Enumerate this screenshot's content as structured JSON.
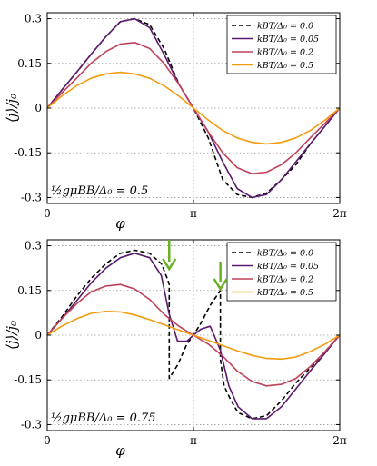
{
  "chart_data": [
    {
      "type": "line",
      "xlabel": "φ",
      "ylabel": "⟨j⟩/j₀",
      "annotation": "½gμBB/Δ₀ = 0.5",
      "xlim": [
        0,
        6.2832
      ],
      "ylim": [
        -0.32,
        0.32
      ],
      "xticks": [
        {
          "v": 0,
          "label": "0"
        },
        {
          "v": 3.1416,
          "label": "π"
        },
        {
          "v": 6.2832,
          "label": "2π"
        }
      ],
      "yticks": [
        {
          "v": 0.3,
          "label": "0.3"
        },
        {
          "v": 0.15,
          "label": "0.15"
        },
        {
          "v": 0,
          "label": "0"
        },
        {
          "v": -0.15,
          "label": "-0.15"
        },
        {
          "v": -0.3,
          "label": "-0.3"
        }
      ],
      "grid": true,
      "legend_position": "top-right",
      "series": [
        {
          "name": "kBT/Δ₀ = 0.0",
          "color": "#000000",
          "dash": "5,3",
          "x": [
            0,
            0.31,
            0.63,
            0.94,
            1.26,
            1.57,
            1.88,
            2.2,
            2.51,
            2.83,
            3.14,
            3.46,
            3.77,
            4.08,
            4.4,
            4.71,
            5.03,
            5.34,
            5.65,
            5.97,
            6.28
          ],
          "y": [
            0,
            0.06,
            0.12,
            0.18,
            0.24,
            0.29,
            0.3,
            0.28,
            0.2,
            0.08,
            0,
            -0.1,
            -0.24,
            -0.29,
            -0.3,
            -0.285,
            -0.24,
            -0.19,
            -0.12,
            -0.06,
            0
          ]
        },
        {
          "name": "kBT/Δ₀ = 0.05",
          "color": "#5b1a6e",
          "dash": "",
          "x": [
            0,
            0.31,
            0.63,
            0.94,
            1.26,
            1.57,
            1.88,
            2.2,
            2.51,
            2.83,
            3.14,
            3.46,
            3.77,
            4.08,
            4.4,
            4.71,
            5.03,
            5.34,
            5.65,
            5.97,
            6.28
          ],
          "y": [
            0,
            0.06,
            0.12,
            0.18,
            0.24,
            0.29,
            0.3,
            0.27,
            0.18,
            0.08,
            0,
            -0.08,
            -0.18,
            -0.27,
            -0.3,
            -0.29,
            -0.24,
            -0.18,
            -0.12,
            -0.06,
            0
          ]
        },
        {
          "name": "kBT/Δ₀ = 0.2",
          "color": "#c0405a",
          "dash": "",
          "x": [
            0,
            0.31,
            0.63,
            0.94,
            1.26,
            1.57,
            1.88,
            2.2,
            2.51,
            2.83,
            3.14,
            3.46,
            3.77,
            4.08,
            4.4,
            4.71,
            5.03,
            5.34,
            5.65,
            5.97,
            6.28
          ],
          "y": [
            0,
            0.05,
            0.1,
            0.15,
            0.19,
            0.215,
            0.22,
            0.2,
            0.15,
            0.08,
            0,
            -0.08,
            -0.15,
            -0.2,
            -0.22,
            -0.215,
            -0.19,
            -0.15,
            -0.1,
            -0.05,
            0
          ]
        },
        {
          "name": "kBT/Δ₀ = 0.5",
          "color": "#f39c12",
          "dash": "",
          "x": [
            0,
            0.31,
            0.63,
            0.94,
            1.26,
            1.57,
            1.88,
            2.2,
            2.51,
            2.83,
            3.14,
            3.46,
            3.77,
            4.08,
            4.4,
            4.71,
            5.03,
            5.34,
            5.65,
            5.97,
            6.28
          ],
          "y": [
            0,
            0.04,
            0.075,
            0.1,
            0.115,
            0.12,
            0.115,
            0.1,
            0.075,
            0.04,
            0,
            -0.04,
            -0.075,
            -0.1,
            -0.115,
            -0.12,
            -0.115,
            -0.1,
            -0.075,
            -0.04,
            0
          ]
        }
      ]
    },
    {
      "type": "line",
      "xlabel": "φ",
      "ylabel": "⟨j⟩/j₀",
      "annotation": "½gμBB/Δ₀ = 0.75",
      "xlim": [
        0,
        6.2832
      ],
      "ylim": [
        -0.32,
        0.32
      ],
      "xticks": [
        {
          "v": 0,
          "label": "0"
        },
        {
          "v": 3.1416,
          "label": "π"
        },
        {
          "v": 6.2832,
          "label": "2π"
        }
      ],
      "yticks": [
        {
          "v": 0.3,
          "label": "0.3"
        },
        {
          "v": 0.15,
          "label": "0.15"
        },
        {
          "v": 0,
          "label": "0"
        },
        {
          "v": -0.15,
          "label": "-0.15"
        },
        {
          "v": -0.3,
          "label": "-0.3"
        }
      ],
      "grid": true,
      "legend_position": "top-right",
      "arrows_x": [
        2.62,
        3.72
      ],
      "arrow_color": "#6ab023",
      "series": [
        {
          "name": "kBT/Δ₀ = 0.0",
          "color": "#000000",
          "dash": "5,3",
          "x": [
            0,
            0.31,
            0.63,
            0.94,
            1.26,
            1.57,
            1.88,
            2.2,
            2.45,
            2.58,
            2.62,
            2.62,
            2.8,
            3.0,
            3.14,
            3.3,
            3.5,
            3.72,
            3.72,
            3.8,
            3.95,
            4.1,
            4.4,
            4.71,
            5.03,
            5.34,
            5.65,
            5.97,
            6.28
          ],
          "y": [
            0,
            0.06,
            0.13,
            0.19,
            0.24,
            0.275,
            0.285,
            0.275,
            0.24,
            0.19,
            0.17,
            -0.145,
            -0.1,
            -0.03,
            0,
            0.04,
            0.1,
            0.15,
            -0.08,
            -0.17,
            -0.22,
            -0.26,
            -0.28,
            -0.27,
            -0.22,
            -0.16,
            -0.11,
            -0.055,
            0
          ]
        },
        {
          "name": "kBT/Δ₀ = 0.05",
          "color": "#5b1a6e",
          "dash": "",
          "x": [
            0,
            0.31,
            0.63,
            0.94,
            1.26,
            1.57,
            1.88,
            2.2,
            2.45,
            2.62,
            2.8,
            3.0,
            3.14,
            3.3,
            3.5,
            3.72,
            3.9,
            4.1,
            4.4,
            4.71,
            5.03,
            5.34,
            5.65,
            5.97,
            6.28
          ],
          "y": [
            0,
            0.055,
            0.115,
            0.175,
            0.225,
            0.26,
            0.275,
            0.26,
            0.2,
            0.07,
            -0.02,
            -0.02,
            0,
            0.02,
            0.03,
            -0.05,
            -0.17,
            -0.24,
            -0.28,
            -0.28,
            -0.24,
            -0.18,
            -0.12,
            -0.06,
            0
          ]
        },
        {
          "name": "kBT/Δ₀ = 0.2",
          "color": "#c0405a",
          "dash": "",
          "x": [
            0,
            0.31,
            0.63,
            0.94,
            1.26,
            1.57,
            1.88,
            2.2,
            2.51,
            2.83,
            3.14,
            3.46,
            3.77,
            4.08,
            4.4,
            4.71,
            5.03,
            5.34,
            5.65,
            5.97,
            6.28
          ],
          "y": [
            0,
            0.055,
            0.105,
            0.145,
            0.165,
            0.17,
            0.155,
            0.12,
            0.07,
            0.03,
            0,
            -0.03,
            -0.07,
            -0.12,
            -0.155,
            -0.17,
            -0.165,
            -0.145,
            -0.105,
            -0.055,
            0
          ]
        },
        {
          "name": "kBT/Δ₀ = 0.5",
          "color": "#f39c12",
          "dash": "",
          "x": [
            0,
            0.31,
            0.63,
            0.94,
            1.26,
            1.57,
            1.88,
            2.2,
            2.51,
            2.83,
            3.14,
            3.46,
            3.77,
            4.08,
            4.4,
            4.71,
            5.03,
            5.34,
            5.65,
            5.97,
            6.28
          ],
          "y": [
            0,
            0.03,
            0.055,
            0.073,
            0.08,
            0.078,
            0.068,
            0.052,
            0.035,
            0.017,
            0,
            -0.017,
            -0.035,
            -0.052,
            -0.068,
            -0.078,
            -0.08,
            -0.073,
            -0.055,
            -0.03,
            0
          ]
        }
      ]
    }
  ]
}
